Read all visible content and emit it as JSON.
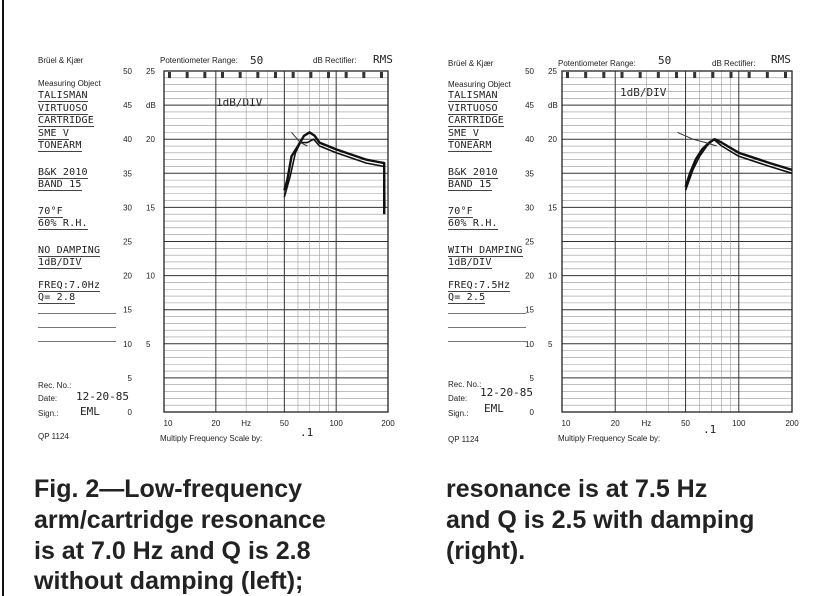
{
  "caption": {
    "left_lines": [
      "Fig. 2—Low-frequency",
      "arm/cartridge resonance",
      "is at 7.0 Hz and Q is 2.8",
      "without damping (left);"
    ],
    "right_lines": [
      "resonance is at 7.5 Hz",
      "and Q is 2.5 with damping",
      "(right)."
    ]
  },
  "chart_data": [
    {
      "type": "line",
      "header": {
        "brand": "Brüel & Kjær",
        "pot_label": "Potentiometer Range:",
        "pot_value": "50",
        "rect_label": "dB Rectifier:",
        "rect_value": "RMS"
      },
      "measuring_object_label": "Measuring Object",
      "notes": [
        "TALISMAN",
        "VIRTUOSO",
        "CARTRIDGE",
        "SME V",
        "TONEARM",
        "B&K 2010",
        "BAND 15",
        "70°F",
        "60% R.H.",
        "NO DAMPING",
        "1dB/DIV",
        "FREQ:7.0Hz",
        "Q= 2.8"
      ],
      "in_chart_label": "1dB/DIV",
      "rec_no_label": "Rec. No.:",
      "date_label": "Date:",
      "date_value": "12-20-85",
      "sign_label": "Sign.:",
      "sign_value": "EML",
      "form_number": "QP 1124",
      "scale_label": "Multiply Frequency Scale by:",
      "scale_value": ".1",
      "y_ticks_outer": [
        "50",
        "45",
        "40",
        "35",
        "30",
        "25",
        "20",
        "15",
        "10",
        "5",
        "0"
      ],
      "y_ticks_inner": [
        "25",
        "dB",
        "20",
        "15",
        "10",
        "5"
      ],
      "x_ticks": [
        "10",
        "20",
        "Hz",
        "50",
        "100",
        "200"
      ],
      "xscale": "log",
      "xlim": [
        10,
        200
      ],
      "ylabel": "dB",
      "ylim": [
        0,
        50
      ],
      "series": [
        {
          "x": [
            50,
            52,
            55,
            60,
            65,
            70,
            75,
            80,
            100,
            150,
            190,
            190
          ],
          "y": [
            32.5,
            34,
            37.5,
            39,
            40.5,
            41,
            40.5,
            39.5,
            38.5,
            37,
            36.5,
            29
          ]
        },
        {
          "x": [
            50,
            54,
            58,
            62,
            68,
            74,
            80,
            100,
            150,
            190,
            192
          ],
          "y": [
            31.5,
            34.5,
            38,
            39.5,
            39.5,
            40,
            39,
            38,
            36.5,
            36,
            30
          ]
        },
        {
          "x": [
            55,
            62,
            68
          ],
          "y": [
            41,
            39.5,
            39
          ]
        }
      ]
    },
    {
      "type": "line",
      "header": {
        "brand": "Brüel & Kjær",
        "pot_label": "Potentiometer Range:",
        "pot_value": "50",
        "rect_label": "dB Rectifier:",
        "rect_value": "RMS"
      },
      "measuring_object_label": "Measuring Object",
      "notes": [
        "TALISMAN",
        "VIRTUOSO",
        "CARTRIDGE",
        "SME V",
        "TONEARM",
        "B&K 2010",
        "BAND 15",
        "70°F",
        "60% R.H.",
        "WITH DAMPING",
        "1dB/DIV",
        "FREQ:7.5Hz",
        "Q= 2.5"
      ],
      "in_chart_label": "1dB/DIV",
      "rec_no_label": "Rec. No.:",
      "date_label": "Date:",
      "date_value": "12-20-85",
      "sign_label": "Sign.:",
      "sign_value": "EML",
      "form_number": "QP 1124",
      "scale_label": "Multiply Frequency Scale by:",
      "scale_value": ".1",
      "y_ticks_outer": [
        "50",
        "45",
        "40",
        "35",
        "30",
        "25",
        "20",
        "15",
        "10",
        "5",
        "0"
      ],
      "y_ticks_inner": [
        "25",
        "dB",
        "20",
        "15",
        "10",
        "5"
      ],
      "x_ticks": [
        "10",
        "20",
        "Hz",
        "50",
        "100",
        "200"
      ],
      "xscale": "log",
      "xlim": [
        10,
        200
      ],
      "ylabel": "dB",
      "ylim": [
        0,
        50
      ],
      "series": [
        {
          "x": [
            50,
            53,
            57,
            62,
            68,
            73,
            80,
            100,
            150,
            200
          ],
          "y": [
            33,
            35,
            37,
            38.5,
            39.5,
            40,
            39.5,
            38,
            36.5,
            35.5
          ]
        },
        {
          "x": [
            50,
            55,
            60,
            66,
            72,
            80,
            100,
            150,
            200
          ],
          "y": [
            32.5,
            35.5,
            37.5,
            39,
            40,
            39,
            37.5,
            36,
            35
          ]
        },
        {
          "x": [
            45,
            55,
            65,
            75
          ],
          "y": [
            41,
            40,
            39.5,
            39
          ]
        }
      ]
    }
  ]
}
